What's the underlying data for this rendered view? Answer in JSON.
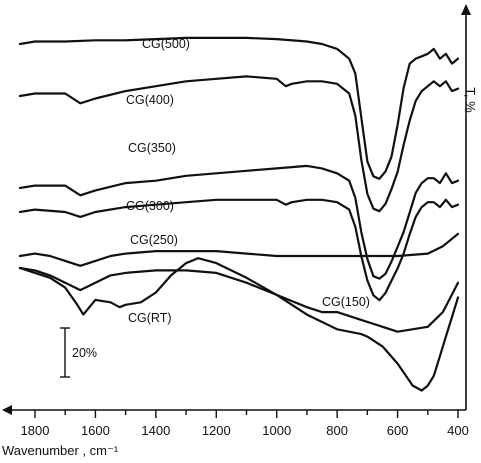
{
  "chart_data": {
    "type": "line",
    "xlabel": "Wavenumber , cm⁻¹",
    "ylabel": "T, %",
    "xlim": [
      1850,
      400
    ],
    "x_reversed": true,
    "x_ticks": [
      1800,
      1600,
      1400,
      1200,
      1000,
      800,
      600,
      400
    ],
    "grid": false,
    "legend": "none",
    "scale_bar": {
      "label": "20%",
      "value_percent_T": 20
    },
    "series": [
      {
        "name": "CG(500)",
        "x": [
          1850,
          1800,
          1700,
          1600,
          1500,
          1400,
          1300,
          1200,
          1100,
          1000,
          900,
          850,
          800,
          760,
          740,
          720,
          700,
          680,
          660,
          640,
          620,
          600,
          580,
          560,
          540,
          520,
          500,
          480,
          460,
          440,
          420,
          400
        ],
        "y": [
          88,
          89,
          89,
          89.5,
          89.5,
          90,
          90.5,
          90.5,
          90.5,
          90,
          89,
          88,
          86,
          82,
          76,
          58,
          40,
          34,
          33,
          36,
          42,
          55,
          70,
          80,
          82,
          83,
          84,
          86,
          82,
          84,
          80,
          82
        ]
      },
      {
        "name": "CG(400)",
        "x": [
          1850,
          1800,
          1700,
          1650,
          1600,
          1500,
          1400,
          1300,
          1200,
          1100,
          1000,
          970,
          950,
          900,
          850,
          800,
          760,
          740,
          720,
          700,
          680,
          660,
          640,
          620,
          600,
          580,
          560,
          540,
          520,
          500,
          480,
          460,
          440,
          420,
          400
        ],
        "y": [
          72,
          73,
          73,
          69,
          71,
          74,
          76,
          78,
          79,
          80,
          79,
          76,
          77,
          78,
          78,
          77,
          73,
          64,
          46,
          32,
          26,
          25,
          28,
          34,
          41,
          52,
          62,
          70,
          74,
          76,
          78,
          76,
          78,
          74,
          75
        ]
      },
      {
        "name": "CG(350)",
        "x": [
          1850,
          1800,
          1700,
          1650,
          1600,
          1500,
          1400,
          1300,
          1200,
          1100,
          1000,
          900,
          850,
          800,
          760,
          740,
          720,
          700,
          680,
          660,
          640,
          620,
          600,
          580,
          560,
          540,
          520,
          500,
          480,
          460,
          440,
          420,
          400
        ],
        "y": [
          54,
          55,
          55,
          51,
          53,
          56,
          57,
          59,
          60,
          61,
          62,
          63,
          62,
          60,
          57,
          50,
          36,
          25,
          18,
          17,
          19,
          24,
          30,
          36,
          44,
          52,
          56,
          58,
          58,
          56,
          60,
          56,
          57
        ]
      },
      {
        "name": "CG(300)",
        "x": [
          1850,
          1800,
          1700,
          1650,
          1600,
          1500,
          1400,
          1300,
          1200,
          1100,
          1000,
          970,
          950,
          900,
          850,
          800,
          760,
          740,
          720,
          700,
          680,
          660,
          640,
          620,
          600,
          580,
          560,
          540,
          520,
          500,
          480,
          460,
          440,
          420,
          400
        ],
        "y": [
          50,
          51,
          50,
          48,
          50,
          52,
          53,
          54,
          55,
          55,
          55,
          53,
          54,
          55,
          55,
          54,
          51,
          44,
          32,
          22,
          16,
          14,
          17,
          22,
          27,
          33,
          41,
          48,
          52,
          54,
          54,
          52,
          55,
          52,
          53
        ]
      },
      {
        "name": "CG(250)",
        "x": [
          1850,
          1800,
          1750,
          1700,
          1650,
          1600,
          1550,
          1500,
          1400,
          1300,
          1200,
          1100,
          1000,
          900,
          800,
          700,
          600,
          500,
          450,
          400
        ],
        "y": [
          36,
          37,
          36,
          34,
          32,
          34,
          36,
          37,
          38,
          38,
          38,
          37,
          36,
          36,
          36,
          36,
          36,
          37,
          40,
          45
        ]
      },
      {
        "name": "CG(150)",
        "x": [
          1850,
          1800,
          1750,
          1700,
          1650,
          1600,
          1550,
          1500,
          1400,
          1300,
          1200,
          1100,
          1000,
          900,
          850,
          800,
          700,
          600,
          500,
          450,
          400
        ],
        "y": [
          36,
          35,
          33,
          30,
          27,
          30,
          33,
          34,
          35,
          35,
          34,
          30,
          25,
          20,
          18,
          18,
          14,
          10,
          12,
          18,
          30
        ]
      },
      {
        "name": "CG(RT)",
        "x": [
          1850,
          1800,
          1750,
          1700,
          1660,
          1640,
          1620,
          1600,
          1550,
          1520,
          1500,
          1450,
          1400,
          1350,
          1300,
          1260,
          1200,
          1100,
          1000,
          900,
          800,
          760,
          720,
          700,
          650,
          600,
          550,
          520,
          500,
          480,
          460,
          440,
          420,
          400
        ],
        "y": [
          36,
          34,
          32,
          28,
          21,
          17,
          20,
          23,
          22,
          20,
          21,
          22,
          26,
          33,
          38,
          40,
          38,
          32,
          25,
          17,
          11,
          10,
          9,
          8,
          4,
          -3,
          -12,
          -14,
          -12,
          -8,
          0,
          8,
          16,
          24
        ]
      }
    ]
  }
}
